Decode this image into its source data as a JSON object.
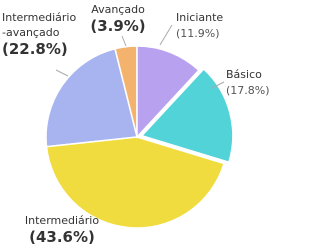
{
  "chart_data": {
    "type": "pie",
    "categories": [
      "Iniciante",
      "Básico",
      "Intermediário",
      "Intermediário\n-avançado",
      "Avançado"
    ],
    "values": [
      11.9,
      17.8,
      43.6,
      22.8,
      3.9
    ],
    "value_labels": [
      "(11.9%)",
      "(17.8%)",
      "(43.6%)",
      "(22.8%)",
      "(3.9%)"
    ],
    "colors": [
      "#b8a2ef",
      "#52d3d8",
      "#f0dc3e",
      "#a8b4f0",
      "#f4b36c"
    ]
  }
}
